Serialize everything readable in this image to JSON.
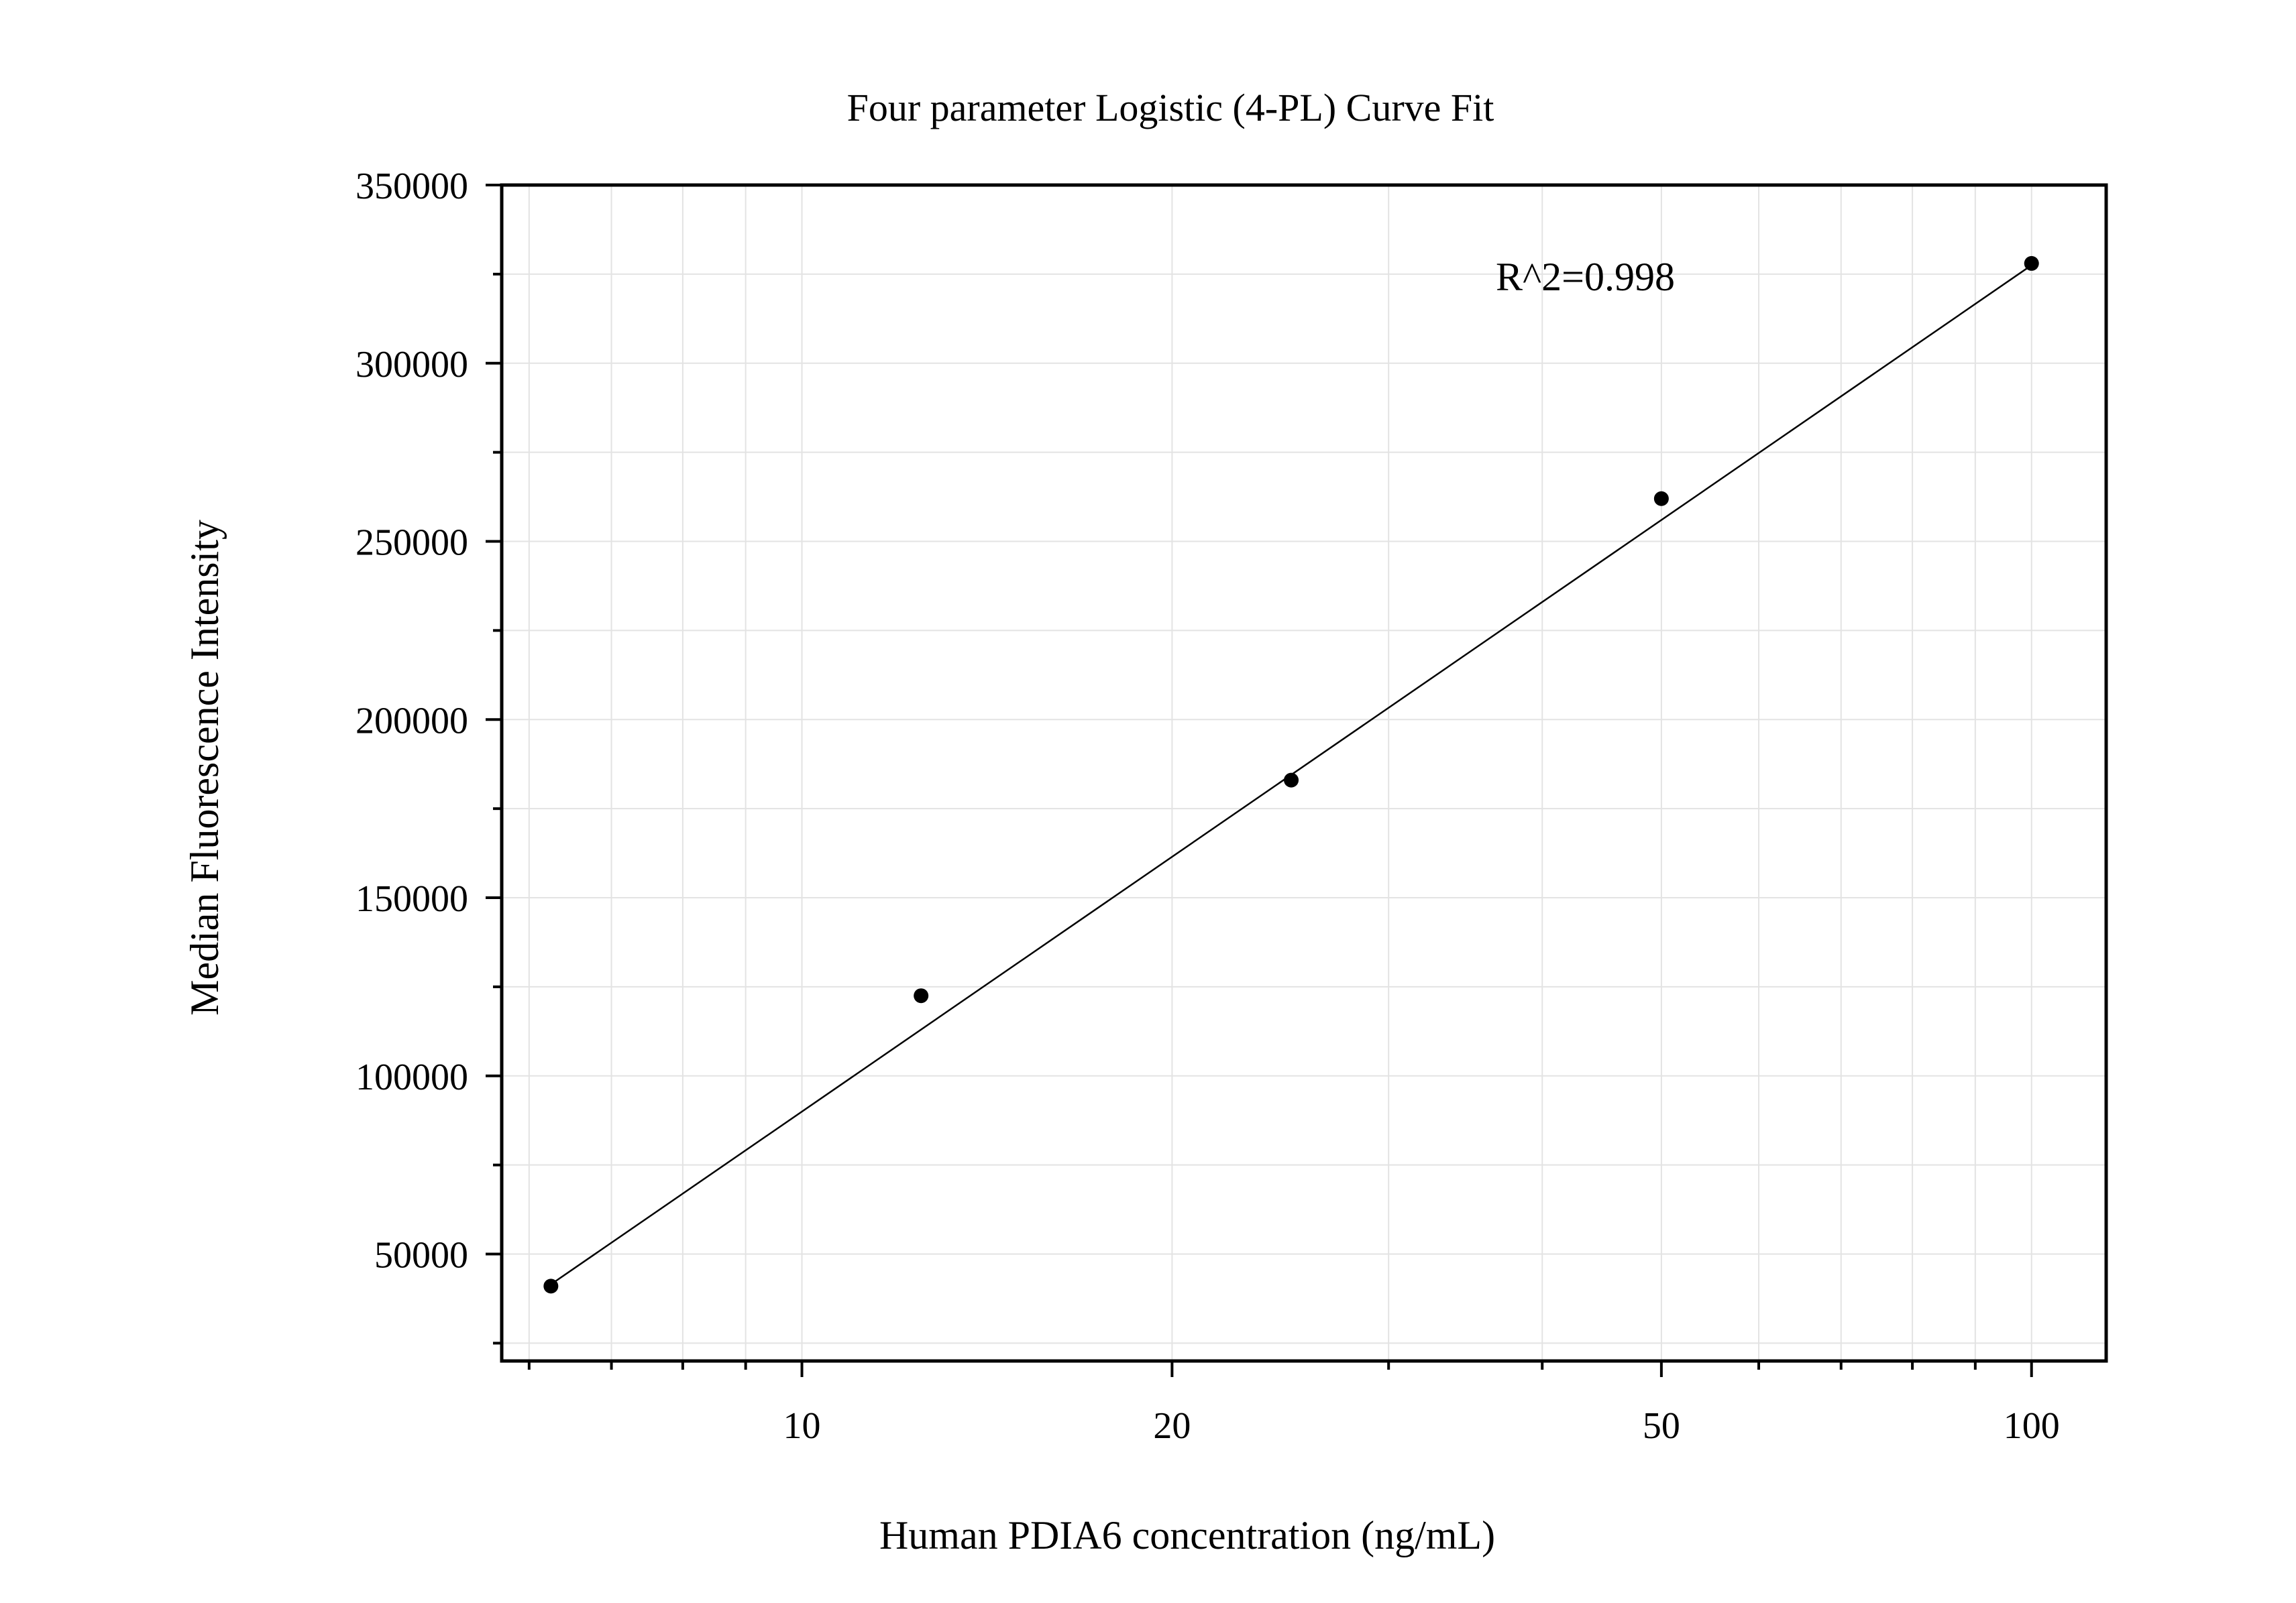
{
  "chart_data": {
    "type": "scatter",
    "title": "Four parameter Logistic (4-PL) Curve Fit",
    "xlabel": "Human PDIA6 concentration (ng/mL)",
    "ylabel": "Median Fluorescence Intensity",
    "x_scale": "log",
    "xlim": [
      5.7,
      115
    ],
    "ylim": [
      20000,
      350000
    ],
    "x_ticks": [
      10,
      20,
      50,
      100
    ],
    "x_tick_labels": [
      "10",
      "20",
      "50",
      "100"
    ],
    "y_ticks": [
      50000,
      100000,
      150000,
      200000,
      250000,
      300000,
      350000
    ],
    "y_tick_labels": [
      "50000",
      "100000",
      "150000",
      "200000",
      "250000",
      "300000",
      "350000"
    ],
    "grid": true,
    "annotation": "R^2=0.998",
    "series": [
      {
        "kind": "points",
        "x": [
          6.25,
          12.5,
          25,
          50,
          100
        ],
        "y": [
          41000,
          122500,
          183000,
          262000,
          328000
        ]
      },
      {
        "kind": "fit-curve",
        "x": [
          6.25,
          100
        ],
        "y": [
          41500,
          327500
        ]
      }
    ],
    "colors": {
      "points": "#000000",
      "curve": "#000000",
      "grid": "#e3e3e3",
      "frame": "#000000"
    }
  }
}
